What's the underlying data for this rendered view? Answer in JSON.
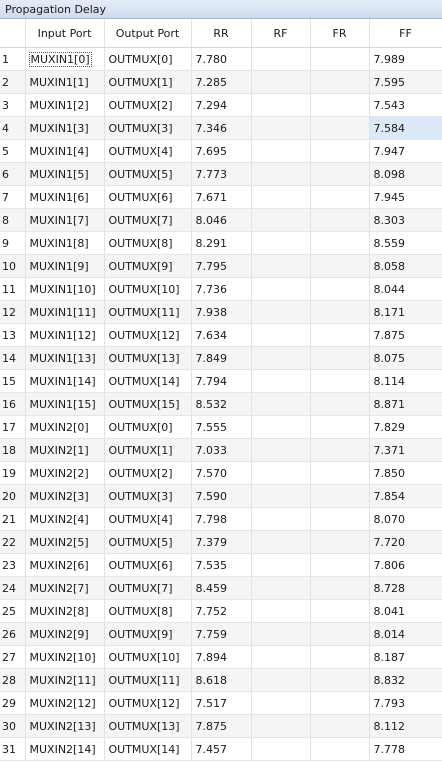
{
  "window": {
    "title": "Propagation Delay"
  },
  "columns": [
    "",
    "Input Port",
    "Output Port",
    "RR",
    "RF",
    "FR",
    "FF"
  ],
  "rows": [
    [
      "1",
      "MUXIN1[0]",
      "OUTMUX[0]",
      "7.780",
      "",
      "",
      "7.989"
    ],
    [
      "2",
      "MUXIN1[1]",
      "OUTMUX[1]",
      "7.285",
      "",
      "",
      "7.595"
    ],
    [
      "3",
      "MUXIN1[2]",
      "OUTMUX[2]",
      "7.294",
      "",
      "",
      "7.543"
    ],
    [
      "4",
      "MUXIN1[3]",
      "OUTMUX[3]",
      "7.346",
      "",
      "",
      "7.584"
    ],
    [
      "5",
      "MUXIN1[4]",
      "OUTMUX[4]",
      "7.695",
      "",
      "",
      "7.947"
    ],
    [
      "6",
      "MUXIN1[5]",
      "OUTMUX[5]",
      "7.773",
      "",
      "",
      "8.098"
    ],
    [
      "7",
      "MUXIN1[6]",
      "OUTMUX[6]",
      "7.671",
      "",
      "",
      "7.945"
    ],
    [
      "8",
      "MUXIN1[7]",
      "OUTMUX[7]",
      "8.046",
      "",
      "",
      "8.303"
    ],
    [
      "9",
      "MUXIN1[8]",
      "OUTMUX[8]",
      "8.291",
      "",
      "",
      "8.559"
    ],
    [
      "10",
      "MUXIN1[9]",
      "OUTMUX[9]",
      "7.795",
      "",
      "",
      "8.058"
    ],
    [
      "11",
      "MUXIN1[10]",
      "OUTMUX[10]",
      "7.736",
      "",
      "",
      "8.044"
    ],
    [
      "12",
      "MUXIN1[11]",
      "OUTMUX[11]",
      "7.938",
      "",
      "",
      "8.171"
    ],
    [
      "13",
      "MUXIN1[12]",
      "OUTMUX[12]",
      "7.634",
      "",
      "",
      "7.875"
    ],
    [
      "14",
      "MUXIN1[13]",
      "OUTMUX[13]",
      "7.849",
      "",
      "",
      "8.075"
    ],
    [
      "15",
      "MUXIN1[14]",
      "OUTMUX[14]",
      "7.794",
      "",
      "",
      "8.114"
    ],
    [
      "16",
      "MUXIN1[15]",
      "OUTMUX[15]",
      "8.532",
      "",
      "",
      "8.871"
    ],
    [
      "17",
      "MUXIN2[0]",
      "OUTMUX[0]",
      "7.555",
      "",
      "",
      "7.829"
    ],
    [
      "18",
      "MUXIN2[1]",
      "OUTMUX[1]",
      "7.033",
      "",
      "",
      "7.371"
    ],
    [
      "19",
      "MUXIN2[2]",
      "OUTMUX[2]",
      "7.570",
      "",
      "",
      "7.850"
    ],
    [
      "20",
      "MUXIN2[3]",
      "OUTMUX[3]",
      "7.590",
      "",
      "",
      "7.854"
    ],
    [
      "21",
      "MUXIN2[4]",
      "OUTMUX[4]",
      "7.798",
      "",
      "",
      "8.070"
    ],
    [
      "22",
      "MUXIN2[5]",
      "OUTMUX[5]",
      "7.379",
      "",
      "",
      "7.720"
    ],
    [
      "23",
      "MUXIN2[6]",
      "OUTMUX[6]",
      "7.535",
      "",
      "",
      "7.806"
    ],
    [
      "24",
      "MUXIN2[7]",
      "OUTMUX[7]",
      "8.459",
      "",
      "",
      "8.728"
    ],
    [
      "25",
      "MUXIN2[8]",
      "OUTMUX[8]",
      "7.752",
      "",
      "",
      "8.041"
    ],
    [
      "26",
      "MUXIN2[9]",
      "OUTMUX[9]",
      "7.759",
      "",
      "",
      "8.014"
    ],
    [
      "27",
      "MUXIN2[10]",
      "OUTMUX[10]",
      "7.894",
      "",
      "",
      "8.187"
    ],
    [
      "28",
      "MUXIN2[11]",
      "OUTMUX[11]",
      "8.618",
      "",
      "",
      "8.832"
    ],
    [
      "29",
      "MUXIN2[12]",
      "OUTMUX[12]",
      "7.517",
      "",
      "",
      "7.793"
    ],
    [
      "30",
      "MUXIN2[13]",
      "OUTMUX[13]",
      "7.875",
      "",
      "",
      "8.112"
    ],
    [
      "31",
      "MUXIN2[14]",
      "OUTMUX[14]",
      "7.457",
      "",
      "",
      "7.778"
    ]
  ],
  "colors": {
    "title_bar": "#cfdcee",
    "highlight_cell": "#dbe9f9",
    "alt_row": "#f5f5f5"
  }
}
